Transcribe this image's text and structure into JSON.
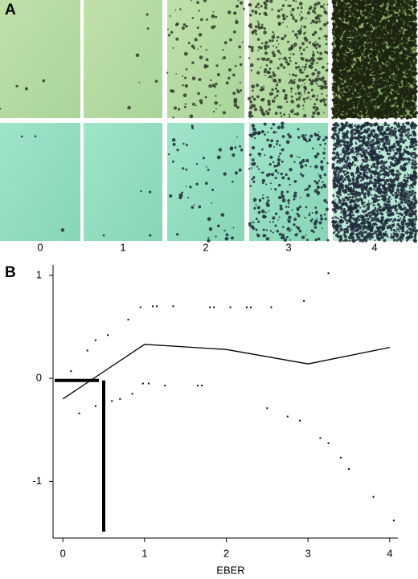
{
  "panel_a": {
    "label": "A",
    "column_labels": [
      "0",
      "1",
      "2",
      "3",
      "4"
    ]
  },
  "chart_data": {
    "type": "line",
    "label": "B",
    "xlabel": "EBER",
    "x": [
      0,
      1,
      2,
      3,
      4
    ],
    "series": [
      {
        "color": "#000000",
        "values": [
          -0.2,
          0.33,
          0.28,
          0.14,
          0.3
        ]
      }
    ],
    "upper_band": {
      "x": [
        0.1,
        0.3,
        0.4,
        0.55,
        0.8,
        0.95,
        1.1,
        1.15,
        1.35,
        1.8,
        1.85,
        2.05,
        2.25,
        2.3,
        2.55,
        2.95,
        3.25
      ],
      "values": [
        0.07,
        0.27,
        0.37,
        0.42,
        0.57,
        0.69,
        0.7,
        0.7,
        0.7,
        0.69,
        0.69,
        0.69,
        0.69,
        0.69,
        0.69,
        0.75,
        1.02
      ]
    },
    "lower_band": {
      "x": [
        0.2,
        0.4,
        0.6,
        0.7,
        0.85,
        0.98,
        1.05,
        1.25,
        1.65,
        1.7,
        2.5,
        2.75,
        2.9,
        3.15,
        3.25,
        3.4,
        3.5,
        3.8,
        4.05
      ],
      "values": [
        -0.34,
        -0.27,
        -0.22,
        -0.2,
        -0.15,
        -0.05,
        -0.05,
        -0.07,
        -0.07,
        -0.07,
        -0.29,
        -0.37,
        -0.41,
        -0.58,
        -0.63,
        -0.77,
        -0.88,
        -1.15,
        -1.38
      ]
    },
    "cutoff": {
      "x": 0.5,
      "y": -0.02
    },
    "xlim": [
      -0.12,
      4.1
    ],
    "ylim": [
      -1.55,
      1.1
    ],
    "xticks": [
      0,
      1,
      2,
      3,
      4
    ],
    "yticks": [
      -1,
      0,
      1
    ]
  }
}
